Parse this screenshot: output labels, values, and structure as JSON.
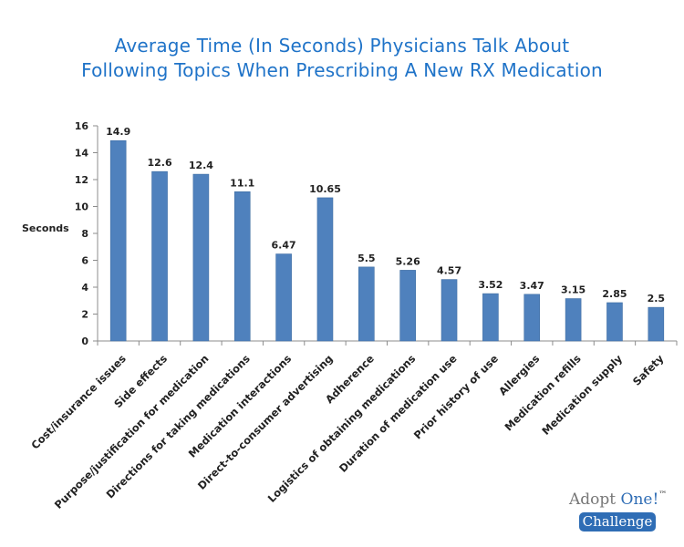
{
  "chart_data": {
    "type": "bar",
    "title_lines": [
      "Average Time (In Seconds) Physicians Talk About",
      "Following Topics When Prescribing A New RX Medication"
    ],
    "ylabel": "Seconds",
    "xlabel": "",
    "ylim": [
      0,
      16
    ],
    "yticks": [
      "0",
      "2",
      "4",
      "6",
      "8",
      "10",
      "12",
      "14",
      "16"
    ],
    "grid": false,
    "legend": "none",
    "bar_color": "#4f81bd",
    "categories": [
      "Cost/insurance issues",
      "Side effects",
      "Purpose/justification for medication",
      "Directions for taking medications",
      "Medication interactions",
      "Direct-to-consumer advertising",
      "Adherence",
      "Logistics of obtaining medications",
      "Duration of medication use",
      "Prior history of use",
      "Allergies",
      "Medication refills",
      "Medication supply",
      "Safety"
    ],
    "values": [
      14.9,
      12.6,
      12.4,
      11.1,
      6.47,
      10.65,
      5.5,
      5.26,
      4.57,
      3.52,
      3.47,
      3.15,
      2.85,
      2.5
    ],
    "value_labels": [
      "14.9",
      "12.6",
      "12.4",
      "11.1",
      "6.47",
      "10.65",
      "5.5",
      "5.26",
      "4.57",
      "3.52",
      "3.47",
      "3.15",
      "2.85",
      "2.5"
    ]
  },
  "logo": {
    "word_adopt": "Adopt ",
    "word_one": "One!",
    "trademark": "™",
    "badge": "Challenge"
  }
}
